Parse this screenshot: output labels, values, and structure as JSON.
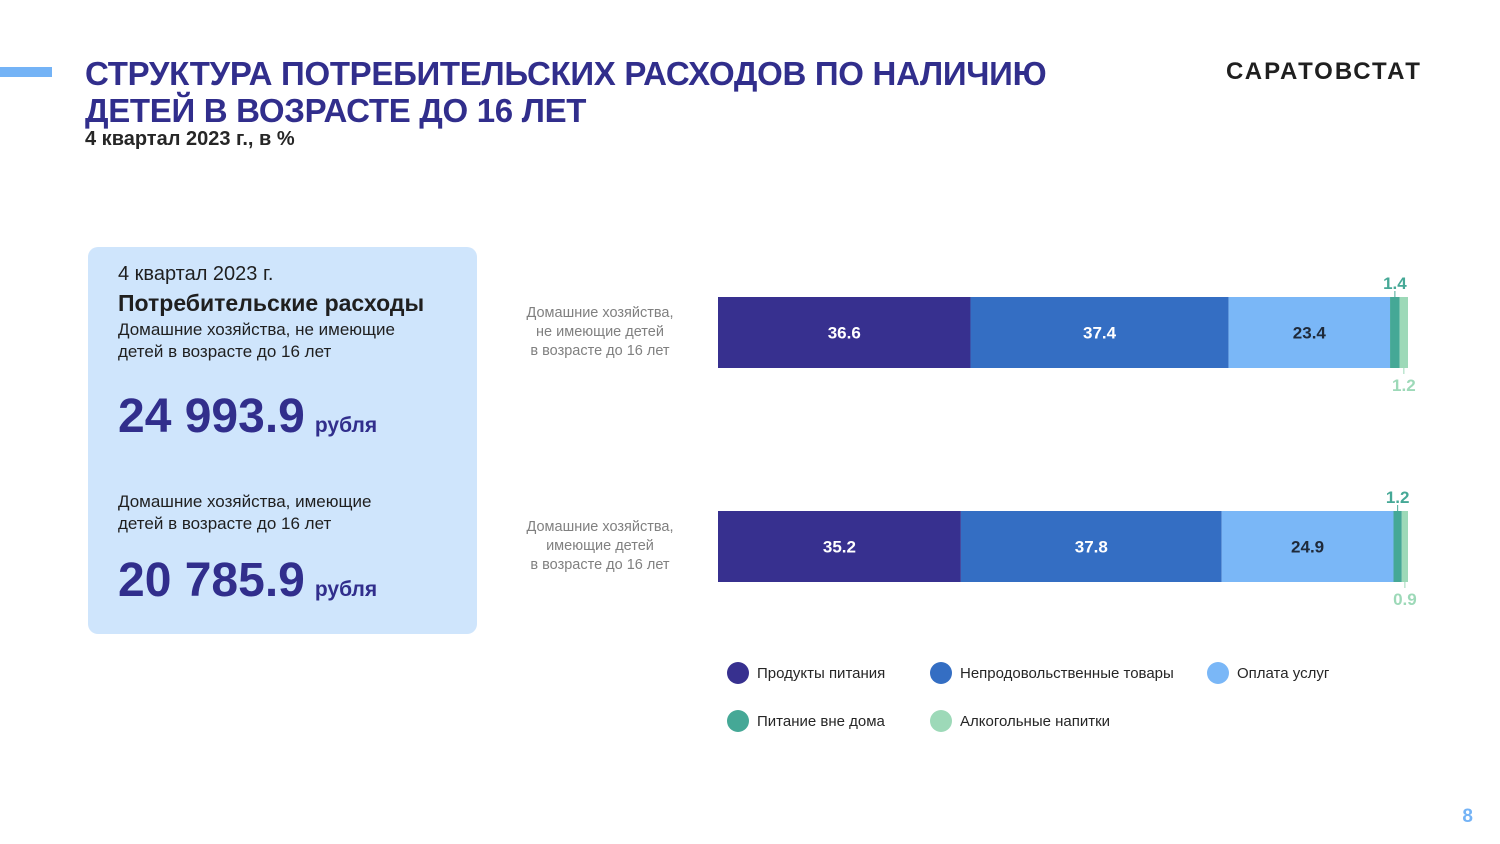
{
  "header": {
    "title_line1": "СТРУКТУРА ПОТРЕБИТЕЛЬСКИХ РАСХОДОВ ПО НАЛИЧИЮ",
    "title_line2": "ДЕТЕЙ В ВОЗРАСТЕ ДО 16 ЛЕТ",
    "subtitle": "4 квартал 2023 г., в %",
    "logo": "САРАТОВСТАТ"
  },
  "card": {
    "period": "4 квартал 2023 г.",
    "heading": "Потребительские расходы",
    "group1_line1": "Домашние хозяйства, не имеющие",
    "group1_line2": "детей в возрасте до 16 лет",
    "group1_value": "24 993.9",
    "group1_unit": "рубля",
    "group2_line1": "Домашние хозяйства, имеющие",
    "group2_line2": "детей в возрасте до 16 лет",
    "group2_value": "20 785.9",
    "group2_unit": "рубля"
  },
  "page_number": "8",
  "chart_data": {
    "type": "bar",
    "orientation": "horizontal",
    "stacked": true,
    "xlim": [
      0,
      100
    ],
    "categories": [
      [
        "Домашние хозяйства,",
        "не имеющие детей",
        "в возрасте до 16 лет"
      ],
      [
        "Домашние хозяйства,",
        "имеющие детей",
        "в возрасте до 16 лет"
      ]
    ],
    "series": [
      {
        "name": "Продукты питания",
        "color": "#37308f",
        "label_color": "#ffffff",
        "values": [
          36.6,
          35.2
        ]
      },
      {
        "name": "Непродовольственные товары",
        "color": "#346ec3",
        "label_color": "#ffffff",
        "values": [
          37.4,
          37.8
        ]
      },
      {
        "name": "Оплата услуг",
        "color": "#7ab7f7",
        "label_color": "#1f2a3a",
        "values": [
          23.4,
          24.9
        ]
      },
      {
        "name": "Питание вне дома",
        "color": "#45a896",
        "label_color": "#45a896",
        "values": [
          1.4,
          1.2
        ]
      },
      {
        "name": "Алкогольные напитки",
        "color": "#9dd9b8",
        "label_color": "#9dd9b8",
        "values": [
          1.2,
          0.9
        ]
      }
    ],
    "legend": "bottom"
  }
}
